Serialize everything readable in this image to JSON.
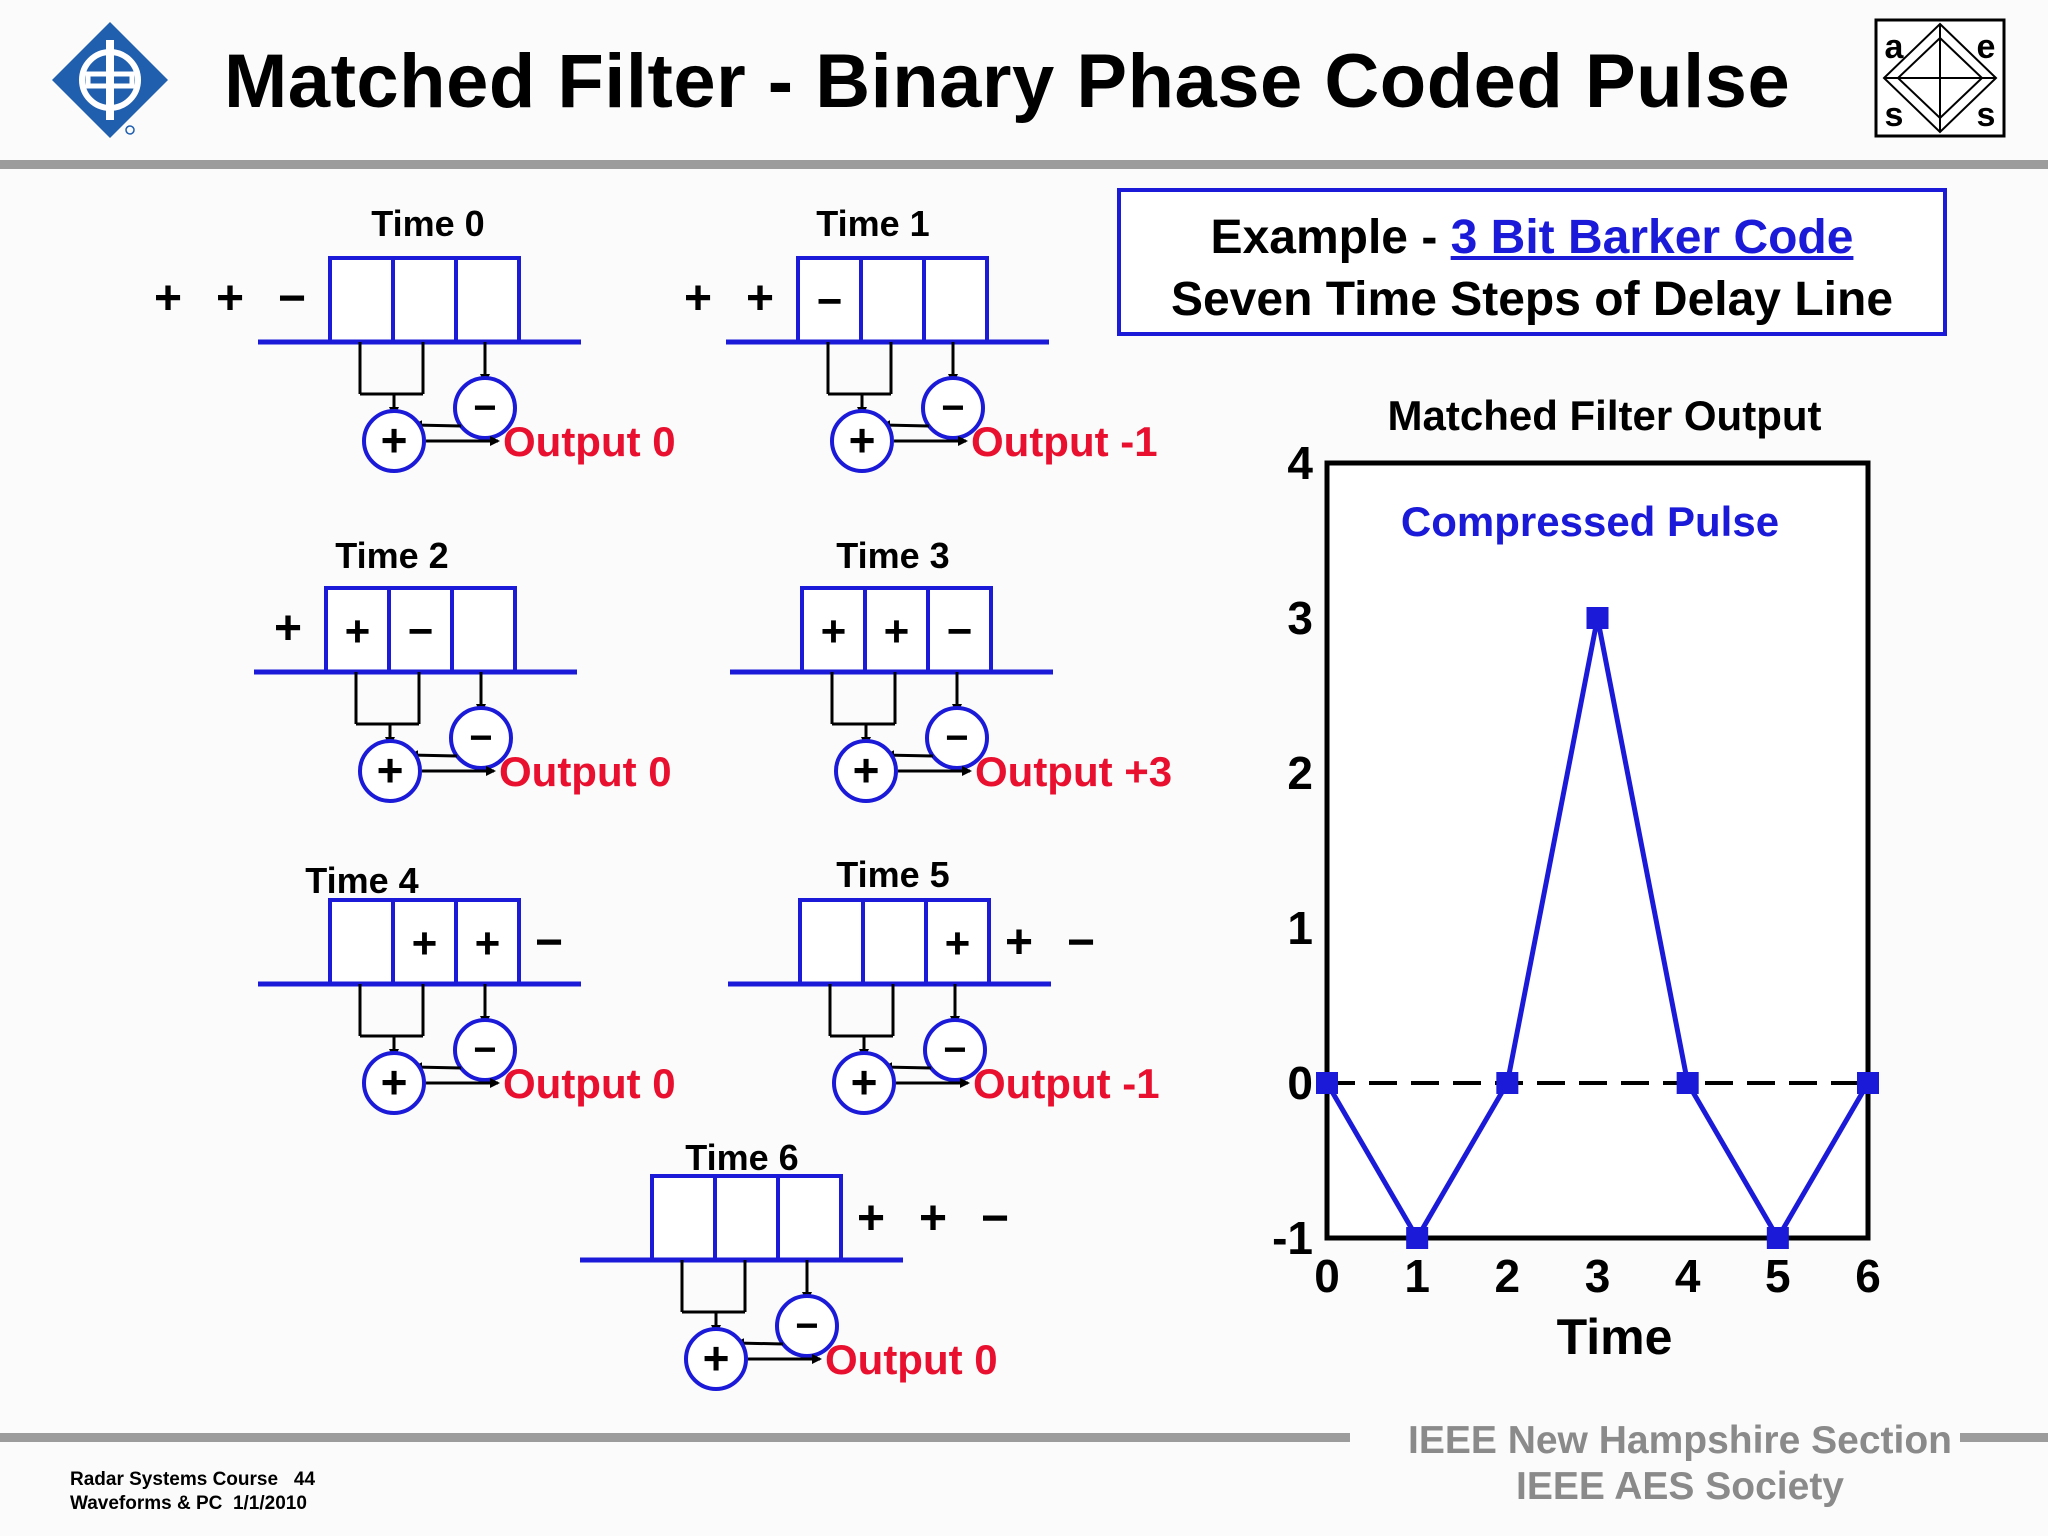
{
  "title": "Matched Filter - Binary Phase Coded Pulse",
  "aess_logo": {
    "letters": [
      "a",
      "e",
      "s",
      "s"
    ]
  },
  "example": {
    "prefix": "Example - ",
    "link": "3 Bit Barker Code",
    "subtitle": "Seven Time Steps of Delay Line"
  },
  "time_steps": [
    {
      "label": "Time 0",
      "output": "Output 0",
      "cells": [
        "",
        "",
        ""
      ],
      "queue_before": [
        "+",
        "+",
        "−"
      ],
      "queue_after": []
    },
    {
      "label": "Time 1",
      "output": "Output -1",
      "cells": [
        "−",
        "",
        ""
      ],
      "queue_before": [
        "+",
        "+"
      ],
      "queue_after": []
    },
    {
      "label": "Time 2",
      "output": "Output 0",
      "cells": [
        "+",
        "−",
        ""
      ],
      "queue_before": [
        "+"
      ],
      "queue_after": []
    },
    {
      "label": "Time 3",
      "output": "Output +3",
      "cells": [
        "+",
        "+",
        "−"
      ],
      "queue_before": [],
      "queue_after": []
    },
    {
      "label": "Time 4",
      "output": "Output 0",
      "cells": [
        "",
        "+",
        "+"
      ],
      "queue_before": [],
      "queue_after": [
        "−"
      ]
    },
    {
      "label": "Time 5",
      "output": "Output -1",
      "cells": [
        "",
        "",
        "+"
      ],
      "queue_before": [],
      "queue_after": [
        "+",
        "−"
      ]
    },
    {
      "label": "Time 6",
      "output": "Output 0",
      "cells": [
        "",
        "",
        ""
      ],
      "queue_before": [],
      "queue_after": [
        "+",
        "+",
        "−"
      ]
    }
  ],
  "symbols": {
    "adder": "+",
    "inverter": "−"
  },
  "chart_data": {
    "type": "line",
    "title": "Matched Filter Output",
    "annotation": "Compressed Pulse",
    "xlabel": "Time",
    "ylabel": "",
    "x": [
      0,
      1,
      2,
      3,
      4,
      5,
      6
    ],
    "y": [
      0,
      -1,
      0,
      3,
      0,
      -1,
      0
    ],
    "xlim": [
      0,
      6
    ],
    "ylim": [
      -1,
      4
    ],
    "x_ticks": [
      "0",
      "1",
      "2",
      "3",
      "4",
      "5",
      "6"
    ],
    "y_ticks": [
      "-1",
      "0",
      "1",
      "2",
      "3",
      "4"
    ],
    "reference_line": {
      "y": 0,
      "style": "dashed"
    },
    "series_color": "#1a1ad8",
    "grid": false
  },
  "footer": {
    "course": "Radar Systems Course   44",
    "module": "Waveforms & PC  1/1/2010",
    "org1": "IEEE New Hampshire Section",
    "org2": "IEEE AES Society"
  },
  "colors": {
    "blue": "#1a1ad8",
    "red": "#e8102e",
    "grey": "#9c9c9c"
  }
}
